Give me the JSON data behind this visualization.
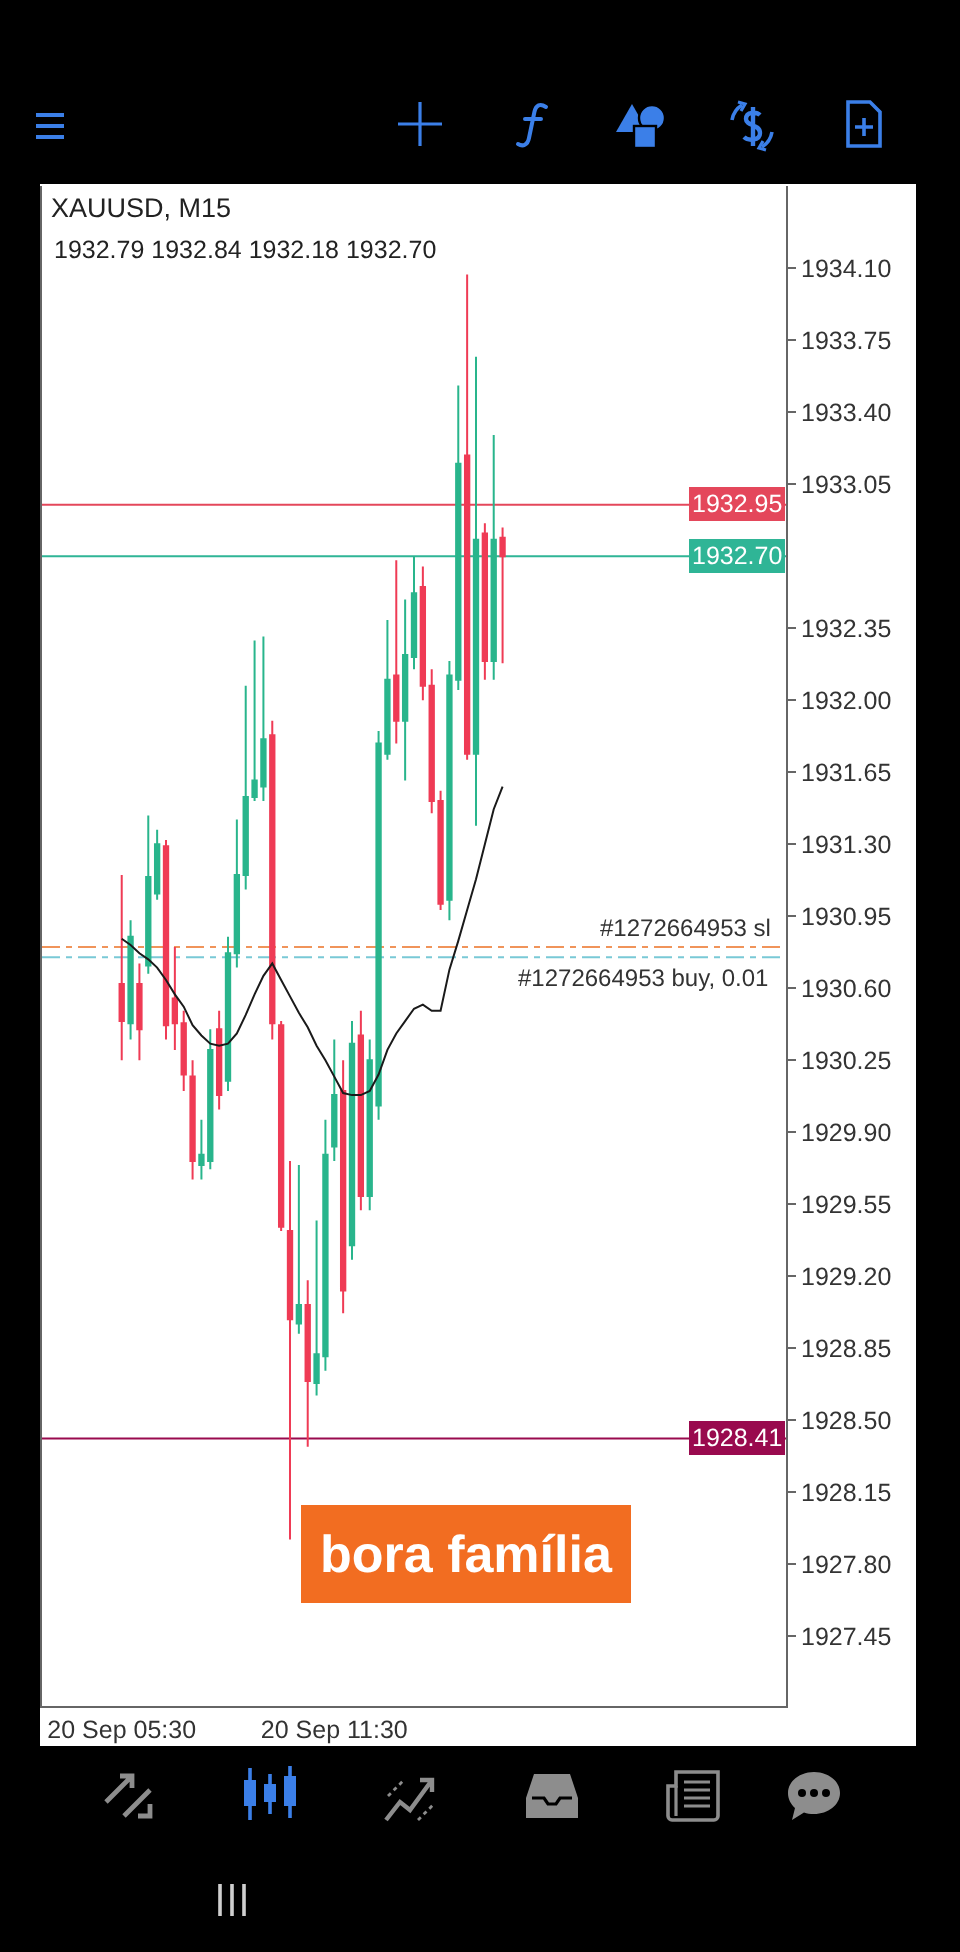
{
  "chart_data": {
    "type": "candlestick",
    "title": "XAUUSD, M15",
    "subtitle": "1932.79 1932.84 1932.18 1932.70",
    "categories": [
      "20 Sep 05:30",
      null,
      null,
      null,
      null,
      null,
      null,
      null,
      null,
      null,
      null,
      null,
      null,
      null,
      null,
      null,
      null,
      null,
      null,
      null,
      null,
      null,
      null,
      null,
      "20 Sep 11:30",
      null,
      null,
      null,
      null,
      null,
      null,
      null,
      null,
      null,
      null,
      null,
      null,
      null,
      null,
      null,
      null,
      null,
      null,
      null
    ],
    "ohlc": [
      [
        1930.62,
        1931.15,
        1930.25,
        1930.44
      ],
      [
        1930.43,
        1930.93,
        1930.35,
        1930.85
      ],
      [
        1930.62,
        1930.72,
        1930.25,
        1930.4
      ],
      [
        1930.71,
        1931.44,
        1930.67,
        1931.14
      ],
      [
        1931.06,
        1931.37,
        1931.03,
        1931.3
      ],
      [
        1931.29,
        1931.32,
        1930.35,
        1930.42
      ],
      [
        1930.55,
        1930.8,
        1930.3,
        1930.43
      ],
      [
        1930.43,
        1930.49,
        1930.1,
        1930.18
      ],
      [
        1930.17,
        1930.25,
        1929.67,
        1929.76
      ],
      [
        1929.74,
        1929.96,
        1929.67,
        1929.79
      ],
      [
        1929.76,
        1930.4,
        1929.72,
        1930.3
      ],
      [
        1930.4,
        1930.49,
        1930.01,
        1930.08
      ],
      [
        1930.15,
        1930.85,
        1930.1,
        1930.77
      ],
      [
        1930.77,
        1931.42,
        1930.7,
        1931.15
      ],
      [
        1931.15,
        1932.07,
        1931.08,
        1931.53
      ],
      [
        1931.53,
        1932.29,
        1931.51,
        1931.61
      ],
      [
        1931.58,
        1932.31,
        1931.51,
        1931.81
      ],
      [
        1931.83,
        1931.9,
        1930.35,
        1930.43
      ],
      [
        1930.42,
        1930.44,
        1929.42,
        1929.44
      ],
      [
        1929.42,
        1929.76,
        1927.92,
        1928.99
      ],
      [
        1928.97,
        1929.74,
        1928.92,
        1929.06
      ],
      [
        1929.06,
        1929.18,
        1928.37,
        1928.69
      ],
      [
        1928.68,
        1929.47,
        1928.62,
        1928.82
      ],
      [
        1928.81,
        1929.96,
        1928.74,
        1929.79
      ],
      [
        1929.83,
        1930.35,
        1929.76,
        1930.08
      ],
      [
        1930.1,
        1930.25,
        1929.02,
        1929.13
      ],
      [
        1929.35,
        1930.44,
        1929.28,
        1930.33
      ],
      [
        1930.37,
        1930.49,
        1929.52,
        1929.59
      ],
      [
        1929.59,
        1930.35,
        1929.52,
        1930.25
      ],
      [
        1930.03,
        1931.85,
        1929.96,
        1931.79
      ],
      [
        1931.74,
        1932.39,
        1931.71,
        1932.1
      ],
      [
        1932.12,
        1932.68,
        1931.79,
        1931.9
      ],
      [
        1931.9,
        1932.49,
        1931.61,
        1932.22
      ],
      [
        1932.21,
        1932.7,
        1932.15,
        1932.52
      ],
      [
        1932.55,
        1932.65,
        1932.0,
        1932.07
      ],
      [
        1932.07,
        1932.15,
        1931.45,
        1931.51
      ],
      [
        1931.51,
        1931.56,
        1930.98,
        1931.01
      ],
      [
        1931.03,
        1932.19,
        1930.93,
        1932.12
      ],
      [
        1932.1,
        1933.53,
        1932.05,
        1933.15
      ],
      [
        1933.19,
        1934.07,
        1931.71,
        1931.74
      ],
      [
        1931.74,
        1933.67,
        1931.39,
        1932.78
      ],
      [
        1932.81,
        1932.86,
        1932.1,
        1932.19
      ],
      [
        1932.19,
        1933.29,
        1932.1,
        1932.78
      ],
      [
        1932.79,
        1932.84,
        1932.18,
        1932.7
      ]
    ],
    "colors": [
      "#ef3b55",
      "#29b58c",
      "#ef3b55",
      "#29b58c",
      "#29b58c",
      "#ef3b55",
      "#ef3b55",
      "#ef3b55",
      "#ef3b55",
      "#29b58c",
      "#29b58c",
      "#ef3b55",
      "#29b58c",
      "#29b58c",
      "#29b58c",
      "#29b58c",
      "#29b58c",
      "#ef3b55",
      "#ef3b55",
      "#ef3b55",
      "#29b58c",
      "#ef3b55",
      "#29b58c",
      "#29b58c",
      "#29b58c",
      "#ef3b55",
      "#29b58c",
      "#ef3b55",
      "#29b58c",
      "#29b58c",
      "#29b58c",
      "#ef3b55",
      "#29b58c",
      "#29b58c",
      "#ef3b55",
      "#ef3b55",
      "#ef3b55",
      "#29b58c",
      "#29b58c",
      "#ef3b55",
      "#29b58c",
      "#ef3b55",
      "#29b58c",
      "#ef3b55"
    ],
    "series": [
      {
        "type": "line",
        "color": "#1a1a1a",
        "values": [
          1930.84,
          1930.81,
          1930.77,
          1930.74,
          1930.7,
          1930.64,
          1930.57,
          1930.51,
          1930.42,
          1930.37,
          1930.33,
          1930.32,
          1930.33,
          1930.38,
          1930.47,
          1930.57,
          1930.66,
          1930.72,
          1930.64,
          1930.56,
          1930.48,
          1930.41,
          1930.32,
          1930.25,
          1930.17,
          1930.09,
          1930.08,
          1930.08,
          1930.1,
          1930.18,
          1930.3,
          1930.38,
          1930.44,
          1930.5,
          1930.52,
          1930.49,
          1930.49,
          1930.69,
          1930.83,
          1930.98,
          1931.13,
          1931.3,
          1931.47,
          1931.58
        ]
      }
    ],
    "ylim": [
      1927.11,
      1934.5
    ],
    "yticks": [
      {
        "value": 1934.1,
        "label": "1934.10"
      },
      1933.75,
      {
        "value": 1933.4,
        "label": "1933.40"
      },
      1933.05,
      1932.35,
      {
        "value": 1932,
        "label": "1932.00"
      },
      1931.65,
      {
        "value": 1931.3,
        "label": "1931.30"
      },
      1930.95,
      {
        "value": 1930.6,
        "label": "1930.60"
      },
      1930.25,
      {
        "value": 1929.9,
        "label": "1929.90"
      },
      1929.55,
      {
        "value": 1929.2,
        "label": "1929.20"
      },
      1928.85,
      {
        "value": 1928.5,
        "label": "1928.50"
      },
      1928.15,
      {
        "value": 1927.8,
        "label": "1927.80"
      },
      1927.45
    ],
    "ref_lines": [
      {
        "axis": "y",
        "value": 1932.95,
        "label": "1932.95",
        "color": "#e4475b"
      },
      {
        "axis": "y",
        "value": 1932.7,
        "label": "1932.70",
        "color": "#2fb596"
      },
      {
        "axis": "y",
        "value": 1928.41,
        "label": "1928.41",
        "color": "#990a4e"
      },
      {
        "axis": "y",
        "value": 1930.8,
        "label": "#1272664953 sl",
        "color": "#f0945a",
        "line_style": "dashed"
      },
      {
        "axis": "y",
        "value": 1930.75,
        "label": "#1272664953 buy, 0.01",
        "color": "#79c9d6",
        "line_style": "dashed"
      }
    ],
    "annotations": [
      "bora família"
    ]
  }
}
